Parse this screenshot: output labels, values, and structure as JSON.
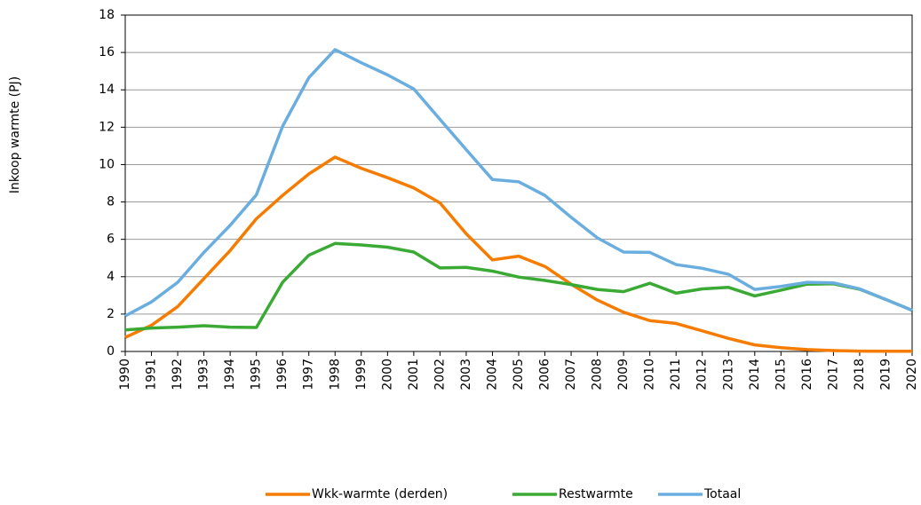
{
  "chart_data": {
    "type": "line",
    "y_label": "Inkoop warmte (PJ)",
    "categories": [
      "1990",
      "1991",
      "1992",
      "1993",
      "1994",
      "1995",
      "1996",
      "1997",
      "1998",
      "1999",
      "2000",
      "2001",
      "2002",
      "2003",
      "2004",
      "2005",
      "2006",
      "2007",
      "2008",
      "2009",
      "2010",
      "2011",
      "2012",
      "2013",
      "2014",
      "2015",
      "2016",
      "2017",
      "2018",
      "2019",
      "2020"
    ],
    "series": [
      {
        "name": "Wkk-warmte (derden)",
        "color": "#f57c00",
        "values": [
          0.75,
          1.4,
          2.4,
          3.9,
          5.4,
          7.1,
          8.35,
          9.5,
          10.4,
          9.8,
          9.3,
          8.75,
          7.95,
          6.3,
          4.9,
          5.1,
          4.55,
          3.6,
          2.75,
          2.1,
          1.65,
          1.5,
          1.1,
          0.7,
          0.35,
          0.2,
          0.1,
          0.05,
          0.02,
          0.01,
          0.01
        ]
      },
      {
        "name": "Restwarmte",
        "color": "#3aaa35",
        "values": [
          1.15,
          1.25,
          1.3,
          1.38,
          1.3,
          1.28,
          3.7,
          5.15,
          5.78,
          5.7,
          5.58,
          5.32,
          4.47,
          4.5,
          4.3,
          3.98,
          3.8,
          3.58,
          3.32,
          3.2,
          3.65,
          3.12,
          3.35,
          3.43,
          2.97,
          3.28,
          3.6,
          3.62,
          3.33,
          2.78,
          2.2
        ]
      },
      {
        "name": "Totaal",
        "color": "#6aaee0",
        "values": [
          1.9,
          2.65,
          3.7,
          5.3,
          6.75,
          8.38,
          12.05,
          14.65,
          16.15,
          15.45,
          14.8,
          14.05,
          12.42,
          10.8,
          9.2,
          9.08,
          8.35,
          7.18,
          6.08,
          5.32,
          5.3,
          4.65,
          4.45,
          4.13,
          3.32,
          3.48,
          3.7,
          3.67,
          3.35,
          2.78,
          2.2
        ]
      }
    ],
    "ylim": [
      0,
      18
    ],
    "yticks": [
      0,
      2,
      4,
      6,
      8,
      10,
      12,
      14,
      16,
      18
    ],
    "grid": true
  }
}
